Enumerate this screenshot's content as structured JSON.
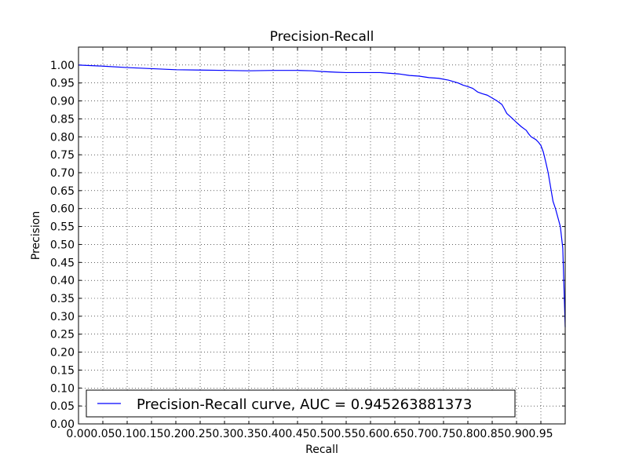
{
  "chart_data": {
    "type": "line",
    "title": "Precision-Recall",
    "xlabel": "Recall",
    "ylabel": "Precision",
    "xlim": [
      0.0,
      1.0
    ],
    "ylim": [
      0.0,
      1.05
    ],
    "grid": true,
    "legend_position": "bottom-left",
    "x_ticks": [
      "0.00",
      "0.05",
      "0.10",
      "0.15",
      "0.20",
      "0.25",
      "0.30",
      "0.35",
      "0.40",
      "0.45",
      "0.50",
      "0.55",
      "0.60",
      "0.65",
      "0.70",
      "0.75",
      "0.80",
      "0.85",
      "0.90",
      "0.95"
    ],
    "y_ticks": [
      "0.00",
      "0.05",
      "0.10",
      "0.15",
      "0.20",
      "0.25",
      "0.30",
      "0.35",
      "0.40",
      "0.45",
      "0.50",
      "0.55",
      "0.60",
      "0.65",
      "0.70",
      "0.75",
      "0.80",
      "0.85",
      "0.90",
      "0.95",
      "1.00"
    ],
    "series": [
      {
        "name": "Precision-Recall curve, AUC = 0.945263881373",
        "color": "#0000ff",
        "x": [
          0.0,
          0.05,
          0.1,
          0.15,
          0.2,
          0.25,
          0.3,
          0.35,
          0.4,
          0.45,
          0.48,
          0.5,
          0.53,
          0.55,
          0.6,
          0.62,
          0.64,
          0.66,
          0.68,
          0.7,
          0.72,
          0.74,
          0.76,
          0.78,
          0.79,
          0.8,
          0.81,
          0.82,
          0.83,
          0.84,
          0.85,
          0.86,
          0.87,
          0.875,
          0.88,
          0.89,
          0.9,
          0.91,
          0.92,
          0.925,
          0.93,
          0.94,
          0.945,
          0.95,
          0.955,
          0.96,
          0.965,
          0.97,
          0.975,
          0.98,
          0.985,
          0.99,
          0.995,
          1.0
        ],
        "y": [
          1.0,
          0.997,
          0.993,
          0.99,
          0.987,
          0.986,
          0.985,
          0.984,
          0.985,
          0.985,
          0.984,
          0.982,
          0.98,
          0.979,
          0.979,
          0.979,
          0.977,
          0.975,
          0.971,
          0.969,
          0.965,
          0.963,
          0.958,
          0.95,
          0.944,
          0.94,
          0.935,
          0.925,
          0.92,
          0.916,
          0.908,
          0.9,
          0.89,
          0.878,
          0.865,
          0.853,
          0.84,
          0.828,
          0.818,
          0.808,
          0.8,
          0.792,
          0.785,
          0.776,
          0.758,
          0.73,
          0.7,
          0.66,
          0.62,
          0.6,
          0.575,
          0.55,
          0.49,
          0.27
        ]
      }
    ]
  }
}
